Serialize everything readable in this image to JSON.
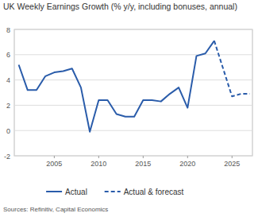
{
  "chart_data": {
    "type": "line",
    "title": "UK Weekly Earnings Growth (% y/y, including bonuses, annual)",
    "source": "Sources: Refinitiv, Capital Economics",
    "x": [
      2001,
      2002,
      2003,
      2004,
      2005,
      2006,
      2007,
      2008,
      2009,
      2010,
      2011,
      2012,
      2013,
      2014,
      2015,
      2016,
      2017,
      2018,
      2019,
      2020,
      2021,
      2022,
      2023,
      2024,
      2025,
      2026,
      2027
    ],
    "series": [
      {
        "name": "Actual",
        "color": "#2a5caa",
        "line_style": "solid",
        "values": [
          5.2,
          3.2,
          3.2,
          4.3,
          4.6,
          4.7,
          4.9,
          3.4,
          -0.1,
          2.4,
          2.4,
          1.3,
          1.1,
          1.1,
          2.4,
          2.4,
          2.3,
          2.9,
          3.4,
          1.8,
          5.9,
          6.1,
          7.1,
          null,
          null,
          null,
          null
        ]
      },
      {
        "name": "Actual & forecast",
        "color": "#2a5caa",
        "line_style": "dashed",
        "values": [
          null,
          null,
          null,
          null,
          null,
          null,
          null,
          null,
          null,
          null,
          null,
          null,
          null,
          null,
          null,
          null,
          null,
          null,
          null,
          null,
          null,
          null,
          7.1,
          4.9,
          2.7,
          2.9,
          2.9
        ]
      }
    ],
    "xlim": [
      2000.5,
      2027.3
    ],
    "xticks": [
      2005,
      2010,
      2015,
      2020,
      2025
    ],
    "ylim": [
      -2,
      8
    ],
    "yticks": [
      -2,
      0,
      2,
      4,
      6,
      8
    ],
    "grid": true,
    "legend": "bottom"
  }
}
